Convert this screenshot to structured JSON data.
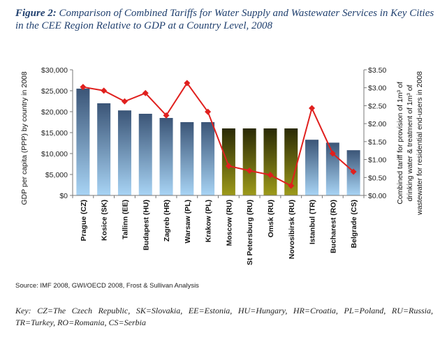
{
  "caption": {
    "figure_label": "Figure 2:",
    "text": "Comparison of Combined Tariffs for Water Supply and Wastewater Services in Key Cities in the CEE Region Relative to GDP at a Country Level, 2008"
  },
  "source": "Source: IMF 2008, GWI/OECD 2008, Frost & Sullivan Analysis",
  "key": "Key:  CZ=The  Czech  Republic,  SK=Slovakia,  EE=Estonia,  HU=Hungary,  HR=Croatia,  PL=Poland, RU=Russia, TR=Turkey, RO=Romania, CS=Serbia",
  "chart_data": {
    "type": "bar",
    "categories": [
      "Prague (CZ)",
      "Kosice (SK)",
      "Tallinn (EE)",
      "Budapest (HU)",
      "Zagreb (HR)",
      "Warsaw (PL)",
      "Krakow (PL)",
      "Moscow (RU)",
      "St Petersburg (RU)",
      "Omsk (RU)",
      "Novosibirsk (RU)",
      "Istanbul (TR)",
      "Bucharest (RO)",
      "Belgrade (CS)"
    ],
    "series": [
      {
        "type": "bar",
        "axis": "left",
        "values": [
          25500,
          22000,
          20300,
          19500,
          18500,
          17500,
          17500,
          16000,
          16000,
          16000,
          16000,
          13300,
          12600,
          10800
        ]
      },
      {
        "type": "line",
        "axis": "right",
        "values": [
          3.02,
          2.92,
          2.62,
          2.85,
          2.23,
          3.13,
          2.33,
          0.82,
          0.69,
          0.57,
          0.27,
          2.43,
          1.17,
          0.66
        ]
      }
    ],
    "bar_colors": {
      "default_top": "#3b5577",
      "default_bottom": "#a8d4f5",
      "russia_top": "#2a2a05",
      "russia_bottom": "#9d9a1a",
      "russia_indices": [
        7,
        8,
        9,
        10
      ]
    },
    "line_color": "#e0201e",
    "ylabel_left": "GDP per capita (PPP) by country in 2008",
    "ylabel_right_lines": [
      "Combined tariff for provision of 1m³ of",
      "drinking water & treatment of 1m³ of",
      "wastewater for residential end-users in 2008"
    ],
    "ylim_left": [
      0,
      30000
    ],
    "ylim_right": [
      0,
      3.5
    ],
    "yticks_left": [
      "$0",
      "$5,000",
      "$10,000",
      "$15,000",
      "$20,000",
      "$25,000",
      "$30,000"
    ],
    "yticks_right": [
      "$0.00",
      "$0.50",
      "$1.00",
      "$1.50",
      "$2.00",
      "$2.50",
      "$3.00",
      "$3.50"
    ],
    "grid": false,
    "legend": "none"
  }
}
